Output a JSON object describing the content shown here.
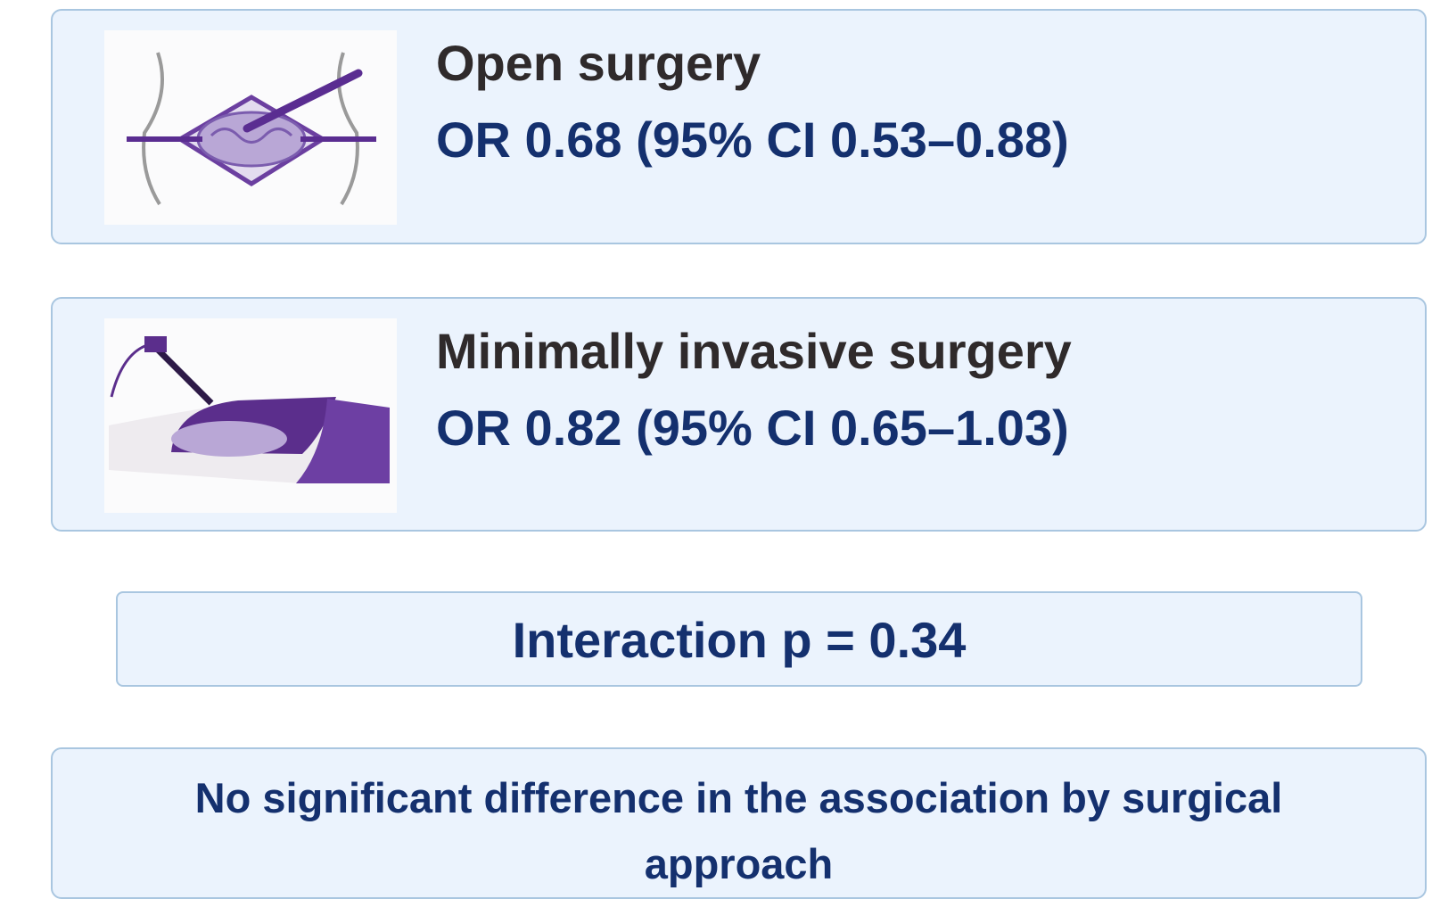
{
  "panels": [
    {
      "title": "Open surgery",
      "result": "OR 0.68 (95% CI 0.53–0.88)"
    },
    {
      "title": "Minimally invasive surgery",
      "result": "OR 0.82 (95% CI 0.65–1.03)"
    }
  ],
  "interaction": "Interaction p = 0.34",
  "conclusion": "No significant difference in the association by surgical approach"
}
